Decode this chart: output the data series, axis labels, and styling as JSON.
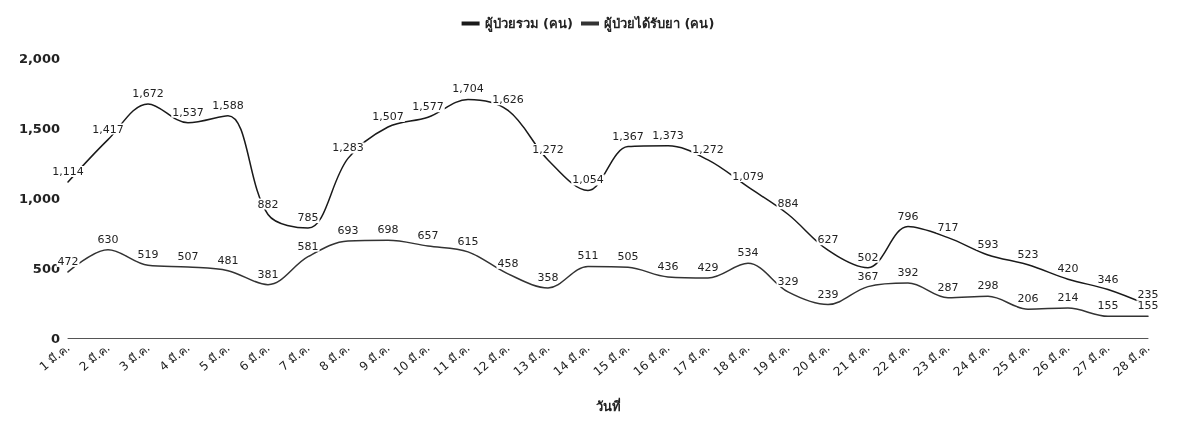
{
  "chart_data": {
    "type": "line",
    "xlabel": "วันที่",
    "categories": [
      "1 มี.ค.",
      "2 มี.ค.",
      "3 มี.ค.",
      "4 มี.ค.",
      "5 มี.ค.",
      "6 มี.ค.",
      "7 มี.ค.",
      "8 มี.ค.",
      "9 มี.ค.",
      "10 มี.ค.",
      "11 มี.ค.",
      "12 มี.ค.",
      "13 มี.ค.",
      "14 มี.ค.",
      "15 มี.ค.",
      "16 มี.ค.",
      "17 มี.ค.",
      "18 มี.ค.",
      "19 มี.ค.",
      "20 มี.ค.",
      "21 มี.ค.",
      "22 มี.ค.",
      "23 มี.ค.",
      "24 มี.ค.",
      "25 มี.ค.",
      "26 มี.ค.",
      "27 มี.ค.",
      "28 มี.ค."
    ],
    "series": [
      {
        "name": "ผู้ป่วยรวม (คน)",
        "color": "#1a1a1a",
        "values": [
          1114,
          1417,
          1672,
          1537,
          1588,
          882,
          785,
          1283,
          1507,
          1577,
          1704,
          1626,
          1272,
          1054,
          1367,
          1373,
          1272,
          1079,
          884,
          627,
          502,
          796,
          717,
          593,
          523,
          420,
          346,
          235
        ],
        "value_labels": [
          "1,114",
          "1,417",
          "1,672",
          "1,537",
          "1,588",
          "882",
          "785",
          "1,283",
          "1,507",
          "1,577",
          "1,704",
          "1,626",
          "1,272",
          "1,054",
          "1,367",
          "1,373",
          "1,272",
          "1,079",
          "884",
          "627",
          "502",
          "796",
          "717",
          "593",
          "523",
          "420",
          "346",
          "235"
        ]
      },
      {
        "name": "ผู้ป่วยได้รับยา (คน)",
        "color": "#333333",
        "values": [
          472,
          630,
          519,
          507,
          481,
          381,
          581,
          693,
          698,
          657,
          615,
          458,
          358,
          511,
          505,
          436,
          429,
          534,
          329,
          239,
          367,
          392,
          287,
          298,
          206,
          214,
          155,
          155
        ],
        "value_labels": [
          "472",
          "630",
          "519",
          "507",
          "481",
          "381",
          "581",
          "693",
          "698",
          "657",
          "615",
          "458",
          "358",
          "511",
          "505",
          "436",
          "429",
          "534",
          "329",
          "239",
          "367",
          "392",
          "287",
          "298",
          "206",
          "214",
          "155",
          "155"
        ]
      }
    ],
    "ylim": [
      0,
      2000
    ],
    "yticks": [
      {
        "value": 0,
        "label": "0"
      },
      {
        "value": 500,
        "label": "500"
      },
      {
        "value": 1000,
        "label": "1,000"
      },
      {
        "value": 1500,
        "label": "1,500"
      },
      {
        "value": 2000,
        "label": "2,000"
      }
    ],
    "grid": false,
    "legend": "top",
    "marker": "none",
    "line_style": "solid"
  }
}
